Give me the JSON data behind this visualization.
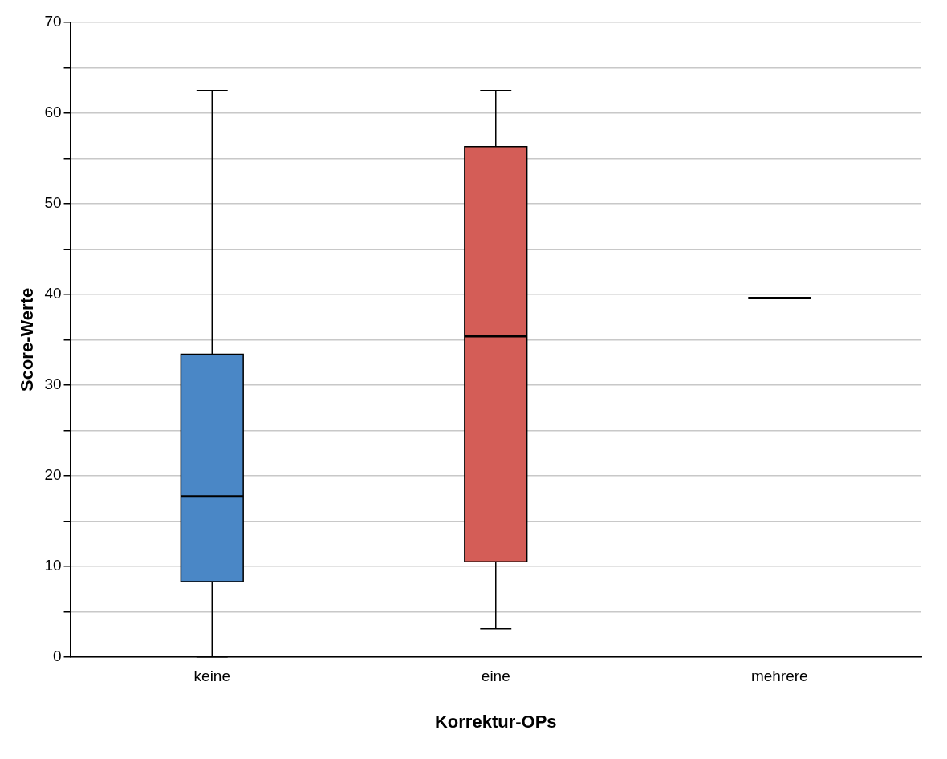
{
  "chart_data": {
    "type": "box",
    "xlabel": "Korrektur-OPs",
    "ylabel": "Score-Werte",
    "categories": [
      "keine",
      "eine",
      "mehrere"
    ],
    "boxes": [
      {
        "low": 0,
        "q1": 8.3,
        "median": 17.7,
        "q3": 33.4,
        "high": 62.5
      },
      {
        "low": 3.1,
        "q1": 10.5,
        "median": 35.4,
        "q3": 56.3,
        "high": 62.5
      },
      {
        "low": 39.6,
        "q1": 39.6,
        "median": 39.6,
        "q3": 39.6,
        "high": 39.6
      }
    ],
    "colors": [
      "#4a87c6",
      "#d45d57",
      "#000000"
    ],
    "ylim": [
      0,
      70
    ],
    "yticks": [
      0,
      {
        "value": 5,
        "label": null
      },
      10,
      {
        "value": 15,
        "label": null
      },
      20,
      {
        "value": 25,
        "label": null
      },
      30,
      {
        "value": 35,
        "label": null
      },
      40,
      {
        "value": 45,
        "label": null
      },
      50,
      {
        "value": 55,
        "label": null
      },
      60,
      {
        "value": 65,
        "label": null
      },
      70
    ],
    "grid": "y",
    "legend": false
  }
}
